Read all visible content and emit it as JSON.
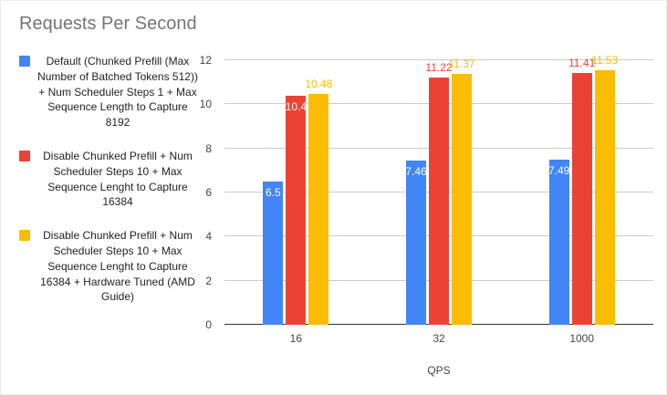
{
  "chart_data": {
    "type": "bar",
    "title": "Requests Per Second",
    "categories": [
      "16",
      "32",
      "1000"
    ],
    "series": [
      {
        "name": "Default (Chunked Prefill (Max Number of Batched Tokens 512)) + Num Scheduler Steps 1 + Max Sequence Length to Capture 8192",
        "color": "#4285F4",
        "values": [
          6.5,
          7.46,
          7.49
        ],
        "labels": [
          "6.5",
          "7.46",
          "7.49"
        ],
        "label_positions": [
          "inside",
          "inside",
          "inside"
        ]
      },
      {
        "name": "Disable Chunked Prefill + Num Scheduler Steps 10 + Max Sequence Lenght to Capture 16384",
        "color": "#EA4335",
        "values": [
          10.4,
          11.22,
          11.41
        ],
        "labels": [
          "10.4",
          "11.22",
          "11.41"
        ],
        "label_positions": [
          "inside",
          "above",
          "above"
        ]
      },
      {
        "name": "Disable Chunked Prefill + Num Scheduler Steps 10 + Max Sequence Lenght to Capture 16384 + Hardware Tuned (AMD Guide)",
        "color": "#FBBC04",
        "values": [
          10.48,
          11.37,
          11.53
        ],
        "labels": [
          "10.48",
          "11.37",
          "11.53"
        ],
        "label_positions": [
          "above",
          "above",
          "above"
        ]
      }
    ],
    "xlabel": "QPS",
    "ylabel": "",
    "ylim": [
      0,
      12
    ],
    "yticks": [
      0,
      2,
      4,
      6,
      8,
      10,
      12
    ],
    "legend_position": "left",
    "grid": true,
    "baseline_color": "#333333",
    "gridline_color": "#cccccc"
  }
}
